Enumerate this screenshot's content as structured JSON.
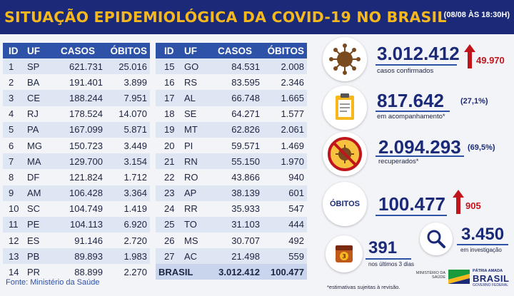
{
  "header": {
    "title": "SITUAÇÃO EPIDEMIOLÓGICA DA COVID-19 NO BRASIL",
    "date": "(08/08 ÀS 18:30H)"
  },
  "table_columns": [
    "ID",
    "UF",
    "CASOS",
    "ÓBITOS"
  ],
  "table_left": [
    {
      "id": "1",
      "uf": "SP",
      "cases": "621.731",
      "deaths": "25.016"
    },
    {
      "id": "2",
      "uf": "BA",
      "cases": "191.401",
      "deaths": "3.899"
    },
    {
      "id": "3",
      "uf": "CE",
      "cases": "188.244",
      "deaths": "7.951"
    },
    {
      "id": "4",
      "uf": "RJ",
      "cases": "178.524",
      "deaths": "14.070"
    },
    {
      "id": "5",
      "uf": "PA",
      "cases": "167.099",
      "deaths": "5.871"
    },
    {
      "id": "6",
      "uf": "MG",
      "cases": "150.723",
      "deaths": "3.449"
    },
    {
      "id": "7",
      "uf": "MA",
      "cases": "129.700",
      "deaths": "3.154"
    },
    {
      "id": "8",
      "uf": "DF",
      "cases": "121.824",
      "deaths": "1.712"
    },
    {
      "id": "9",
      "uf": "AM",
      "cases": "106.428",
      "deaths": "3.364"
    },
    {
      "id": "10",
      "uf": "SC",
      "cases": "104.749",
      "deaths": "1.419"
    },
    {
      "id": "11",
      "uf": "PE",
      "cases": "104.113",
      "deaths": "6.920"
    },
    {
      "id": "12",
      "uf": "ES",
      "cases": "91.146",
      "deaths": "2.720"
    },
    {
      "id": "13",
      "uf": "PB",
      "cases": "89.893",
      "deaths": "1.983"
    },
    {
      "id": "14",
      "uf": "PR",
      "cases": "88.899",
      "deaths": "2.270"
    }
  ],
  "table_right": [
    {
      "id": "15",
      "uf": "GO",
      "cases": "84.531",
      "deaths": "2.008"
    },
    {
      "id": "16",
      "uf": "RS",
      "cases": "83.595",
      "deaths": "2.346"
    },
    {
      "id": "17",
      "uf": "AL",
      "cases": "66.748",
      "deaths": "1.665"
    },
    {
      "id": "18",
      "uf": "SE",
      "cases": "64.271",
      "deaths": "1.577"
    },
    {
      "id": "19",
      "uf": "MT",
      "cases": "62.826",
      "deaths": "2.061"
    },
    {
      "id": "20",
      "uf": "PI",
      "cases": "59.571",
      "deaths": "1.469"
    },
    {
      "id": "21",
      "uf": "RN",
      "cases": "55.150",
      "deaths": "1.970"
    },
    {
      "id": "22",
      "uf": "RO",
      "cases": "43.866",
      "deaths": "940"
    },
    {
      "id": "23",
      "uf": "AP",
      "cases": "38.139",
      "deaths": "601"
    },
    {
      "id": "24",
      "uf": "RR",
      "cases": "35.933",
      "deaths": "547"
    },
    {
      "id": "25",
      "uf": "TO",
      "cases": "31.103",
      "deaths": "444"
    },
    {
      "id": "26",
      "uf": "MS",
      "cases": "30.707",
      "deaths": "492"
    },
    {
      "id": "27",
      "uf": "AC",
      "cases": "21.498",
      "deaths": "559"
    }
  ],
  "total": {
    "label": "BRASIL",
    "cases": "3.012.412",
    "deaths": "100.477"
  },
  "source": "Fonte: Ministério da Saúde",
  "stats": {
    "confirmed": {
      "value": "3.012.412",
      "label": "casos confirmados",
      "delta": "49.970",
      "icon": "virus-icon"
    },
    "monitoring": {
      "value": "817.642",
      "pct": "(27,1%)",
      "label": "em acompanhamento*",
      "icon": "clipboard-icon"
    },
    "recovered": {
      "value": "2.094.293",
      "pct": "(69,5%)",
      "label": "recuperados*",
      "icon": "no-virus-icon"
    },
    "deaths": {
      "badge": "ÓBITOS",
      "value": "100.477",
      "delta": "905"
    },
    "recent": {
      "value": "391",
      "label": "nos últimos 3 dias",
      "icon": "calendar-icon"
    },
    "investigation": {
      "value": "3.450",
      "label": "em investigação",
      "icon": "magnifier-icon"
    }
  },
  "footnote": "*estimativas sujeitas à revisão.",
  "logos": {
    "ministry": "MINISTÉRIO DA SAÚDE",
    "brasil_top": "PÁTRIA AMADA",
    "brasil": "BRASIL",
    "brasil_sub": "GOVERNO FEDERAL"
  },
  "colors": {
    "navy": "#1b2a78",
    "blue": "#2d52a8",
    "gold": "#f6b81d",
    "red": "#c0151b",
    "row_alt": "#dfe6f3"
  }
}
